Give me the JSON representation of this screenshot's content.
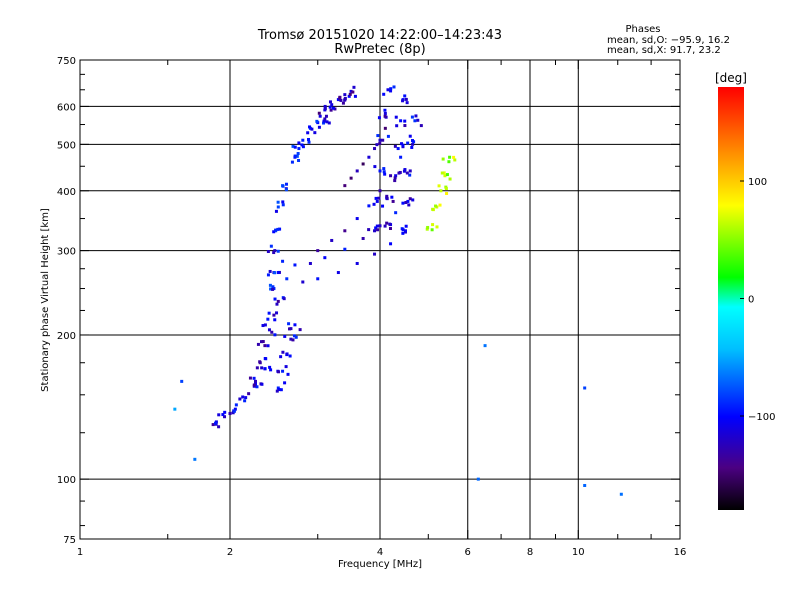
{
  "chart_data": {
    "type": "scatter",
    "title": "Tromsø 20151020 14:22:00–14:23:43",
    "subtitle": "RwPretec (8p)",
    "xlabel": "Frequency [MHz]",
    "ylabel": "Stationary phase Virtual Height [km]",
    "xscale": "log2",
    "yscale": "log",
    "xlim": [
      1,
      16
    ],
    "ylim": [
      75,
      750
    ],
    "x_ticks": [
      1,
      2,
      4,
      6,
      8,
      10,
      16
    ],
    "x_tick_labels": [
      "1",
      "2",
      "4",
      "6",
      "8",
      "10",
      "16"
    ],
    "x_minor_ticks": [
      1.5,
      3,
      5,
      7,
      9,
      12,
      14
    ],
    "y_ticks": [
      75,
      100,
      200,
      300,
      400,
      500,
      600,
      750
    ],
    "y_tick_labels": [
      "75",
      "100",
      "200",
      "300",
      "400",
      "500",
      "600",
      "750"
    ],
    "y_minor_ticks": [
      80,
      90,
      125,
      150,
      175,
      225,
      250,
      275,
      350,
      450,
      550,
      650,
      700
    ],
    "grid_x": [
      2,
      4,
      6,
      8,
      10
    ],
    "grid_y": [
      100,
      200,
      300,
      400,
      500,
      600
    ],
    "phase_stats": {
      "heading": "Phases",
      "o_line": "mean, sd,O: −95.9, 16.2",
      "x_line": "mean, sd,X:  91.7, 23.2"
    },
    "colorbar": {
      "label": "[deg]",
      "range": [
        -180,
        180
      ],
      "ticks": [
        100,
        0,
        -100
      ],
      "tick_labels": [
        "100",
        "0",
        "−100"
      ]
    },
    "series": [
      {
        "name": "echo traces (freq MHz, height km, phase deg)",
        "traces": [
          {
            "x": [
              1.85,
              1.95,
              2.05,
              2.15,
              2.25,
              2.35
            ],
            "y": [
              130,
              135,
              140,
              148,
              158,
              170
            ],
            "phase": -110
          },
          {
            "x": [
              2.25,
              2.3,
              2.35,
              2.4,
              2.45,
              2.5
            ],
            "y": [
              160,
              175,
              190,
              205,
              220,
              235
            ],
            "phase": -115
          },
          {
            "x": [
              2.5,
              2.55,
              2.6,
              2.65,
              2.7
            ],
            "y": [
              155,
              168,
              182,
              196,
              210
            ],
            "phase": -110
          },
          {
            "x": [
              2.45,
              2.45,
              2.46,
              2.47,
              2.5,
              2.55
            ],
            "y": [
              250,
              270,
              300,
              330,
              370,
              410
            ],
            "phase": -100
          },
          {
            "x": [
              2.5,
              2.6,
              2.8,
              3.0,
              3.3,
              3.6,
              3.9,
              4.2,
              4.5
            ],
            "y": [
              270,
              262,
              258,
              262,
              270,
              282,
              295,
              310,
              328
            ],
            "phase": -105
          },
          {
            "x": [
              2.55,
              2.7,
              2.9,
              3.1,
              3.4,
              3.7,
              4.0,
              4.3,
              4.6
            ],
            "y": [
              285,
              280,
              282,
              290,
              302,
              318,
              338,
              360,
              385
            ],
            "phase": -110
          },
          {
            "x": [
              3.0,
              3.2,
              3.4,
              3.6,
              3.8,
              4.0,
              4.2,
              4.4,
              4.6
            ],
            "y": [
              300,
              315,
              330,
              350,
              372,
              400,
              430,
              470,
              520
            ],
            "phase": -115
          },
          {
            "x": [
              3.4,
              3.5,
              3.6,
              3.7,
              3.8,
              3.9,
              4.0,
              4.1
            ],
            "y": [
              410,
              425,
              440,
              455,
              470,
              490,
              510,
              540
            ],
            "phase": -130
          },
          {
            "x": [
              3.9,
              3.95,
              4.0,
              4.05,
              4.1,
              4.15
            ],
            "y": [
              330,
              380,
              440,
              510,
              580,
              650
            ],
            "phase": -110
          },
          {
            "x": [
              4.2,
              4.25,
              4.3,
              4.35,
              4.4,
              4.45
            ],
            "y": [
              340,
              380,
              430,
              490,
              560,
              620
            ],
            "phase": -115
          },
          {
            "x": [
              4.5,
              4.55,
              4.6,
              4.65,
              4.7
            ],
            "y": [
              330,
              380,
              440,
              500,
              560
            ],
            "phase": -105
          },
          {
            "x": [
              2.7,
              2.75,
              2.8,
              2.9,
              3.0,
              3.1
            ],
            "y": [
              470,
              490,
              510,
              540,
              555,
              565
            ],
            "phase": -100
          },
          {
            "x": [
              3.1,
              3.2,
              3.3,
              3.4,
              3.5
            ],
            "y": [
              590,
              605,
              620,
              635,
              645
            ],
            "phase": -125
          },
          {
            "x": [
              5.1,
              5.2,
              5.3,
              5.4,
              5.5
            ],
            "y": [
              340,
              370,
              400,
              430,
              460
            ],
            "phase": 60
          },
          {
            "x": [
              1.55,
              1.6,
              1.7,
              10.3,
              10.3,
              12.2,
              6.3,
              6.5
            ],
            "y": [
              140,
              160,
              110,
              155,
              97,
              93,
              100,
              190
            ],
            "phase": -60
          }
        ]
      }
    ]
  }
}
